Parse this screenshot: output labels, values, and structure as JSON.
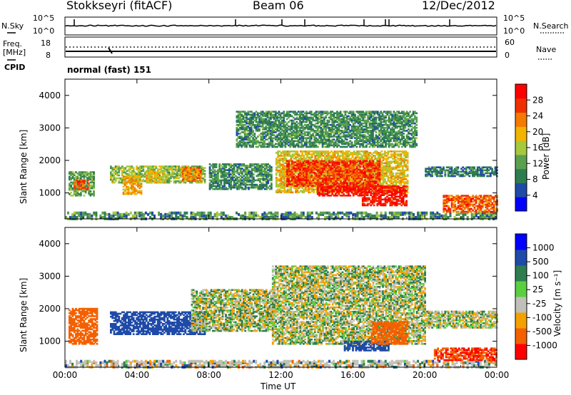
{
  "header": {
    "station": "Stokkseyri (fitACF)",
    "beam": "Beam 06",
    "date": "12/Dec/2012"
  },
  "strip_labels": {
    "nsky": "N.Sky",
    "nsky_hi": "10^5",
    "nsky_lo": "10^0",
    "nsearch": "N.Search",
    "nsearch_hi": "10^5",
    "nsearch_lo": "10^0",
    "freq_line1": "Freq.",
    "freq_line2": "[MHz]",
    "freq_hi": "18",
    "freq_lo": "8",
    "nave": "Nave",
    "nave_hi": "60",
    "nave_lo": "0",
    "cpid": "CPID",
    "cpid_value": "normal (fast) 151"
  },
  "colors": {
    "power_scale": [
      "#0000ff",
      "#1f4aa8",
      "#2e7d50",
      "#5aa050",
      "#a6c83c",
      "#f2b400",
      "#f47a00",
      "#f03000",
      "#ff0000"
    ],
    "velocity_scale": [
      "#0000ff",
      "#1f4aa8",
      "#2e7d50",
      "#5ad040",
      "#c0c0b8",
      "#f4a000",
      "#f46000",
      "#ff0000"
    ],
    "ground_scatter": "#b4b4b4"
  },
  "chart_data": [
    {
      "type": "heatmap",
      "panel": "power",
      "title": "",
      "xlabel": "Time UT",
      "ylabel": "Slant Range [km]",
      "xlim": [
        "00:00",
        "24:00"
      ],
      "ylim": [
        200,
        4500
      ],
      "x_ticks": [
        "00:00",
        "04:00",
        "08:00",
        "12:00",
        "16:00",
        "20:00",
        "00:00"
      ],
      "y_ticks": [
        "1000",
        "2000",
        "3000",
        "4000"
      ],
      "colorbar": {
        "label": "Power [dB]",
        "range": [
          0,
          31
        ],
        "ticks": [
          "28",
          "24",
          "20",
          "16",
          "12",
          "8",
          "4"
        ]
      },
      "regions": [
        {
          "t0": 0.2,
          "t1": 1.6,
          "r0": 900,
          "r1": 1650,
          "value": 12
        },
        {
          "t0": 0.5,
          "t1": 1.3,
          "r0": 1100,
          "r1": 1400,
          "value": 24
        },
        {
          "t0": 2.5,
          "t1": 7.8,
          "r0": 1300,
          "r1": 1800,
          "value": 14
        },
        {
          "t0": 3.2,
          "t1": 4.2,
          "r0": 950,
          "r1": 1500,
          "value": 20
        },
        {
          "t0": 4.5,
          "t1": 5.5,
          "r0": 1300,
          "r1": 1700,
          "value": 18
        },
        {
          "t0": 6.5,
          "t1": 7.5,
          "r0": 1350,
          "r1": 1800,
          "value": 22
        },
        {
          "t0": 8.0,
          "t1": 11.5,
          "r0": 1100,
          "r1": 1900,
          "value": 10
        },
        {
          "t0": 11.7,
          "t1": 19.0,
          "r0": 1000,
          "r1": 2300,
          "value": 18
        },
        {
          "t0": 12.3,
          "t1": 17.5,
          "r0": 1200,
          "r1": 2000,
          "value": 26
        },
        {
          "t0": 14.0,
          "t1": 16.5,
          "r0": 900,
          "r1": 1200,
          "value": 29
        },
        {
          "t0": 16.5,
          "t1": 19.0,
          "r0": 600,
          "r1": 1200,
          "value": 28
        },
        {
          "t0": 21.0,
          "t1": 24.0,
          "r0": 400,
          "r1": 900,
          "value": 24
        },
        {
          "t0": 20.0,
          "t1": 24.0,
          "r0": 1500,
          "r1": 1800,
          "value": 8
        },
        {
          "t0": 9.5,
          "t1": 19.5,
          "r0": 2400,
          "r1": 3500,
          "value": 10
        }
      ]
    },
    {
      "type": "heatmap",
      "panel": "velocity",
      "title": "",
      "xlabel": "Time UT",
      "ylabel": "Slant Range [km]",
      "xlim": [
        "00:00",
        "24:00"
      ],
      "ylim": [
        200,
        4500
      ],
      "x_ticks": [
        "00:00",
        "04:00",
        "08:00",
        "12:00",
        "16:00",
        "20:00",
        "00:00"
      ],
      "y_ticks": [
        "1000",
        "2000",
        "3000",
        "4000"
      ],
      "colorbar": {
        "label": "Velocity [m s⁻¹]",
        "ticks": [
          "1000",
          "500",
          "100",
          "25",
          "-25",
          "-100",
          "-500",
          "-1000"
        ]
      },
      "regions": [
        {
          "t0": 0.2,
          "t1": 1.8,
          "r0": 900,
          "r1": 2000,
          "value": -200
        },
        {
          "t0": 2.5,
          "t1": 7.8,
          "r0": 1200,
          "r1": 1900,
          "value": 200
        },
        {
          "t0": 7.0,
          "t1": 11.5,
          "r0": 1300,
          "r1": 2600,
          "value": 0
        },
        {
          "t0": 11.5,
          "t1": 20.0,
          "r0": 900,
          "r1": 3300,
          "value": 0
        },
        {
          "t0": 15.5,
          "t1": 18.0,
          "r0": 700,
          "r1": 1000,
          "value": 150
        },
        {
          "t0": 17.0,
          "t1": 19.0,
          "r0": 900,
          "r1": 1600,
          "value": -300
        },
        {
          "t0": 20.5,
          "t1": 24.0,
          "r0": 400,
          "r1": 800,
          "value": -500
        },
        {
          "t0": 20.0,
          "t1": 24.0,
          "r0": 1400,
          "r1": 1900,
          "value": 0
        }
      ]
    }
  ]
}
